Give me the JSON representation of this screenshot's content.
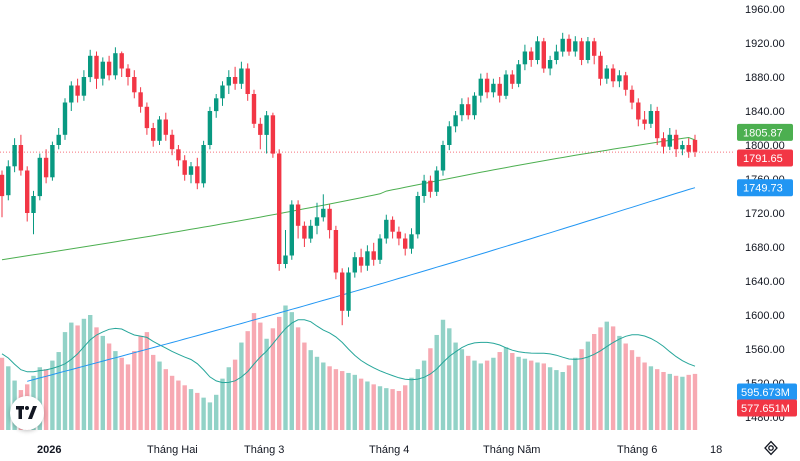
{
  "chart_data": {
    "type": "candlestick",
    "price_axis": {
      "ylim": [
        1440,
        1975
      ],
      "tick_labels": [
        "1960.00",
        "1920.00",
        "1880.00",
        "1840.00",
        "1800.00",
        "1760.00",
        "1720.00",
        "1680.00",
        "1640.00",
        "1600.00",
        "1560.00",
        "1520.00",
        "1480.00"
      ]
    },
    "time_axis": {
      "tick_labels": [
        "2026",
        "Tháng Hai",
        "Tháng 3",
        "Tháng 4",
        "Tháng Năm",
        "Tháng 6",
        "18"
      ]
    },
    "candles": [
      [
        1765,
        1740,
        1770,
        1715
      ],
      [
        1741,
        1775,
        1782,
        1735
      ],
      [
        1775,
        1800,
        1808,
        1768
      ],
      [
        1800,
        1770,
        1812,
        1764
      ],
      [
        1770,
        1720,
        1775,
        1710
      ],
      [
        1720,
        1740,
        1746,
        1695
      ],
      [
        1740,
        1785,
        1790,
        1735
      ],
      [
        1785,
        1762,
        1795,
        1755
      ],
      [
        1762,
        1800,
        1804,
        1758
      ],
      [
        1800,
        1812,
        1820,
        1795
      ],
      [
        1812,
        1850,
        1855,
        1806
      ],
      [
        1850,
        1870,
        1875,
        1840
      ],
      [
        1870,
        1858,
        1878,
        1850
      ],
      [
        1858,
        1880,
        1888,
        1852
      ],
      [
        1880,
        1905,
        1912,
        1874
      ],
      [
        1905,
        1878,
        1910,
        1866
      ],
      [
        1878,
        1898,
        1903,
        1870
      ],
      [
        1898,
        1882,
        1905,
        1876
      ],
      [
        1882,
        1908,
        1915,
        1877
      ],
      [
        1908,
        1890,
        1910,
        1880
      ],
      [
        1890,
        1880,
        1895,
        1870
      ],
      [
        1880,
        1862,
        1888,
        1855
      ],
      [
        1862,
        1845,
        1868,
        1838
      ],
      [
        1845,
        1820,
        1850,
        1812
      ],
      [
        1820,
        1805,
        1826,
        1798
      ],
      [
        1805,
        1830,
        1834,
        1800
      ],
      [
        1830,
        1812,
        1838,
        1805
      ],
      [
        1812,
        1795,
        1818,
        1788
      ],
      [
        1795,
        1782,
        1800,
        1775
      ],
      [
        1782,
        1765,
        1788,
        1758
      ],
      [
        1765,
        1775,
        1780,
        1755
      ],
      [
        1775,
        1755,
        1785,
        1748
      ],
      [
        1755,
        1800,
        1805,
        1750
      ],
      [
        1800,
        1840,
        1845,
        1795
      ],
      [
        1840,
        1855,
        1860,
        1832
      ],
      [
        1855,
        1870,
        1875,
        1846
      ],
      [
        1870,
        1880,
        1888,
        1860
      ],
      [
        1880,
        1872,
        1892,
        1865
      ],
      [
        1872,
        1890,
        1898,
        1866
      ],
      [
        1890,
        1860,
        1896,
        1852
      ],
      [
        1860,
        1825,
        1865,
        1820
      ],
      [
        1825,
        1812,
        1832,
        1795
      ],
      [
        1812,
        1835,
        1840,
        1790
      ],
      [
        1835,
        1790,
        1838,
        1785
      ],
      [
        1790,
        1660,
        1795,
        1652
      ],
      [
        1660,
        1670,
        1700,
        1655
      ],
      [
        1670,
        1730,
        1735,
        1665
      ],
      [
        1730,
        1705,
        1735,
        1690
      ],
      [
        1705,
        1690,
        1710,
        1680
      ],
      [
        1690,
        1705,
        1712,
        1685
      ],
      [
        1705,
        1715,
        1732,
        1695
      ],
      [
        1715,
        1725,
        1742,
        1710
      ],
      [
        1725,
        1700,
        1730,
        1690
      ],
      [
        1700,
        1650,
        1705,
        1642
      ],
      [
        1650,
        1605,
        1655,
        1588
      ],
      [
        1605,
        1650,
        1656,
        1598
      ],
      [
        1650,
        1668,
        1674,
        1644
      ],
      [
        1668,
        1658,
        1678,
        1650
      ],
      [
        1658,
        1675,
        1682,
        1652
      ],
      [
        1675,
        1665,
        1685,
        1658
      ],
      [
        1665,
        1690,
        1695,
        1660
      ],
      [
        1690,
        1712,
        1718,
        1684
      ],
      [
        1712,
        1698,
        1716,
        1690
      ],
      [
        1698,
        1690,
        1704,
        1682
      ],
      [
        1690,
        1678,
        1696,
        1670
      ],
      [
        1678,
        1695,
        1702,
        1672
      ],
      [
        1695,
        1740,
        1745,
        1690
      ],
      [
        1740,
        1758,
        1765,
        1732
      ],
      [
        1758,
        1745,
        1764,
        1738
      ],
      [
        1745,
        1770,
        1775,
        1740
      ],
      [
        1770,
        1800,
        1805,
        1764
      ],
      [
        1800,
        1822,
        1828,
        1794
      ],
      [
        1822,
        1835,
        1840,
        1815
      ],
      [
        1835,
        1848,
        1855,
        1828
      ],
      [
        1848,
        1835,
        1856,
        1830
      ],
      [
        1835,
        1858,
        1862,
        1830
      ],
      [
        1858,
        1878,
        1884,
        1850
      ],
      [
        1878,
        1862,
        1885,
        1855
      ],
      [
        1862,
        1872,
        1878,
        1856
      ],
      [
        1872,
        1858,
        1880,
        1850
      ],
      [
        1858,
        1883,
        1888,
        1854
      ],
      [
        1883,
        1872,
        1888,
        1866
      ],
      [
        1872,
        1895,
        1900,
        1868
      ],
      [
        1895,
        1910,
        1918,
        1888
      ],
      [
        1910,
        1900,
        1915,
        1892
      ],
      [
        1900,
        1922,
        1928,
        1895
      ],
      [
        1922,
        1890,
        1926,
        1885
      ],
      [
        1890,
        1900,
        1905,
        1882
      ],
      [
        1900,
        1910,
        1918,
        1895
      ],
      [
        1910,
        1925,
        1932,
        1904
      ],
      [
        1925,
        1910,
        1930,
        1905
      ],
      [
        1910,
        1922,
        1928,
        1904
      ],
      [
        1922,
        1900,
        1926,
        1894
      ],
      [
        1900,
        1922,
        1927,
        1896
      ],
      [
        1922,
        1905,
        1926,
        1895
      ],
      [
        1905,
        1878,
        1910,
        1870
      ],
      [
        1878,
        1890,
        1894,
        1872
      ],
      [
        1890,
        1875,
        1895,
        1868
      ],
      [
        1875,
        1882,
        1888,
        1868
      ],
      [
        1882,
        1865,
        1886,
        1858
      ],
      [
        1865,
        1850,
        1870,
        1842
      ],
      [
        1850,
        1830,
        1855,
        1822
      ],
      [
        1830,
        1825,
        1840,
        1818
      ],
      [
        1825,
        1840,
        1848,
        1820
      ],
      [
        1840,
        1808,
        1845,
        1800
      ],
      [
        1808,
        1798,
        1815,
        1790
      ],
      [
        1798,
        1812,
        1820,
        1794
      ],
      [
        1812,
        1795,
        1818,
        1786
      ],
      [
        1795,
        1800,
        1805,
        1788
      ],
      [
        1800,
        1792,
        1808,
        1785
      ],
      [
        1806,
        1792,
        1812,
        1786
      ]
    ],
    "volume": {
      "values": [
        595,
        586,
        571,
        561,
        567,
        576,
        585,
        583,
        592,
        601,
        622,
        632,
        629,
        636,
        640,
        627,
        618,
        610,
        602,
        595,
        588,
        602,
        618,
        622,
        598,
        591,
        583,
        576,
        571,
        566,
        562,
        558,
        553,
        548,
        556,
        573,
        585,
        593,
        611,
        623,
        642,
        632,
        615,
        626,
        638,
        650,
        643,
        627,
        611,
        603,
        596,
        590,
        586,
        583,
        581,
        579,
        577,
        573,
        570,
        567,
        565,
        563,
        562,
        560,
        566,
        574,
        583,
        592,
        605,
        619,
        635,
        626,
        611,
        604,
        597,
        592,
        589,
        592,
        595,
        601,
        606,
        600,
        596,
        594,
        592,
        590,
        589,
        585,
        582,
        580,
        587,
        595,
        604,
        612,
        620,
        627,
        633,
        628,
        618,
        610,
        603,
        596,
        590,
        586,
        583,
        580,
        578,
        576,
        575,
        577,
        578
      ],
      "tick_labels": [
        "595.673M",
        "577.651M"
      ]
    },
    "moving_averages": [
      {
        "color": "#4caf50",
        "last_value": 1805.87
      },
      {
        "color": "#2196f3",
        "last_value": 1749.73
      }
    ],
    "last_price": 1791.65,
    "colors": {
      "up": "#089981",
      "down": "#f23645",
      "up_volume": "#92d2c7",
      "down_volume": "#f7a9b2"
    },
    "grid": false
  },
  "labels": {
    "price_ticks": [
      "1960.00",
      "1920.00",
      "1880.00",
      "1840.00",
      "1800.00",
      "1760.00",
      "1720.00",
      "1680.00",
      "1640.00",
      "1600.00",
      "1560.00",
      "1520.00",
      "1480.00"
    ],
    "ma_green_label": "1805.87",
    "last_price_label": "1791.65",
    "ma_blue_label": "1749.73",
    "volume_green_label": "595.673M",
    "volume_red_label": "577.651M",
    "time_ticks": [
      "2026",
      "Tháng Hai",
      "Tháng 3",
      "Tháng 4",
      "Tháng Năm",
      "Tháng 6",
      "18"
    ]
  },
  "icons": {
    "logo": "tradingview-logo-icon",
    "settings": "gear-icon"
  }
}
